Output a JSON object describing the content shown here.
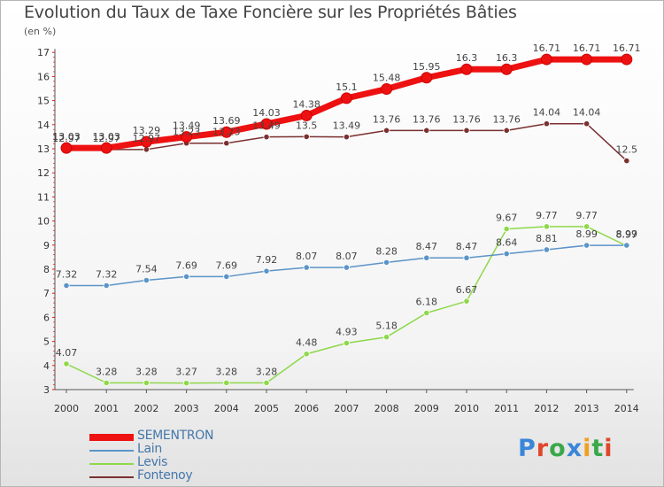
{
  "header": {
    "title": "Evolution du Taux de Taxe Foncière sur les Propriétés Bâties",
    "unit": "(en %)"
  },
  "logo": {
    "text": "Proxiti",
    "letters": [
      "P",
      "r",
      "o",
      "x",
      "i",
      "t",
      "i"
    ],
    "letter_colors": [
      "#3a86d8",
      "#e0462b",
      "#3aa84a",
      "#3a86d8",
      "#f0a020",
      "#3aa84a",
      "#e0462b"
    ]
  },
  "chart_data": {
    "type": "line",
    "title": "Evolution du Taux de Taxe Foncière sur les Propriétés Bâties",
    "ylabel": "(en %)",
    "xlabel": "",
    "ylim": [
      3,
      17
    ],
    "yticks": [
      3,
      4,
      5,
      6,
      7,
      8,
      9,
      10,
      11,
      12,
      13,
      14,
      15,
      16,
      17
    ],
    "grid": false,
    "legend": "bottom-left",
    "categories": [
      "2000",
      "2001",
      "2002",
      "2003",
      "2004",
      "2005",
      "2006",
      "2007",
      "2008",
      "2009",
      "2010",
      "2011",
      "2012",
      "2013",
      "2014"
    ],
    "series": [
      {
        "name": "SEMENTRON",
        "color": "#ee1111",
        "values": [
          13.03,
          13.03,
          13.29,
          13.49,
          13.69,
          14.03,
          14.38,
          15.1,
          15.48,
          15.95,
          16.3,
          16.3,
          16.71,
          16.71,
          16.71
        ],
        "labels": [
          "13.03",
          "13.03",
          "13.29",
          "13.49",
          "13.69",
          "14.03",
          "14.38",
          "15.1",
          "15.48",
          "15.95",
          "16.3",
          "16.3",
          "16.71",
          "16.71",
          "16.71"
        ]
      },
      {
        "name": "Lain",
        "color": "#5b94c8",
        "values": [
          7.32,
          7.32,
          7.54,
          7.69,
          7.69,
          7.92,
          8.07,
          8.07,
          8.28,
          8.47,
          8.47,
          8.64,
          8.81,
          8.99,
          8.99
        ],
        "labels": [
          "7.32",
          "7.32",
          "7.54",
          "7.69",
          "7.69",
          "7.92",
          "8.07",
          "8.07",
          "8.28",
          "8.47",
          "8.47",
          "8.64",
          "8.81",
          "8.99",
          "8.99"
        ]
      },
      {
        "name": "Levis",
        "color": "#8ed84a",
        "values": [
          4.07,
          3.28,
          3.28,
          3.27,
          3.28,
          3.28,
          4.48,
          4.93,
          5.18,
          6.18,
          6.67,
          9.67,
          9.77,
          9.77,
          8.97
        ],
        "labels": [
          "4.07",
          "3.28",
          "3.28",
          "3.27",
          "3.28",
          "3.28",
          "4.48",
          "4.93",
          "5.18",
          "6.18",
          "6.67",
          "9.67",
          "9.77",
          "9.77",
          "8.97"
        ]
      },
      {
        "name": "Fontenoy",
        "color": "#7a3030",
        "values": [
          12.97,
          12.97,
          12.97,
          13.23,
          13.23,
          13.49,
          13.5,
          13.49,
          13.76,
          13.76,
          13.76,
          13.76,
          14.04,
          14.04,
          12.5
        ],
        "labels": [
          "12.97",
          "12.97",
          "12.97",
          "13.23",
          "13.23",
          "13.49",
          "13.5",
          "13.49",
          "13.76",
          "13.76",
          "13.76",
          "13.76",
          "14.04",
          "14.04",
          "12.5"
        ]
      }
    ]
  }
}
